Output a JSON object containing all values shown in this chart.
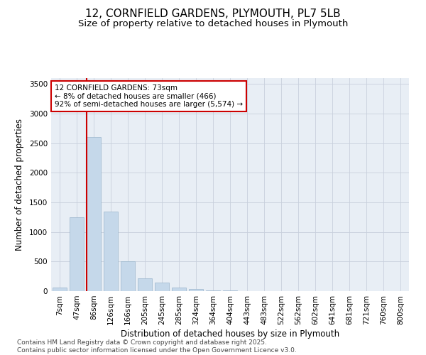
{
  "title_line1": "12, CORNFIELD GARDENS, PLYMOUTH, PL7 5LB",
  "title_line2": "Size of property relative to detached houses in Plymouth",
  "xlabel": "Distribution of detached houses by size in Plymouth",
  "ylabel": "Number of detached properties",
  "categories": [
    "7sqm",
    "47sqm",
    "86sqm",
    "126sqm",
    "166sqm",
    "205sqm",
    "245sqm",
    "285sqm",
    "324sqm",
    "364sqm",
    "404sqm",
    "443sqm",
    "483sqm",
    "522sqm",
    "562sqm",
    "602sqm",
    "641sqm",
    "681sqm",
    "721sqm",
    "760sqm",
    "800sqm"
  ],
  "values": [
    55,
    1245,
    2600,
    1350,
    500,
    220,
    145,
    55,
    40,
    18,
    8,
    4,
    2,
    1,
    1,
    0,
    0,
    0,
    0,
    0,
    0
  ],
  "bar_color": "#c5d8ea",
  "bar_edge_color": "#9ab5cc",
  "grid_color": "#c8d0dc",
  "bg_color": "#e8eef5",
  "vline_color": "#cc0000",
  "vline_pos": 1.57,
  "annotation_text": "12 CORNFIELD GARDENS: 73sqm\n← 8% of detached houses are smaller (466)\n92% of semi-detached houses are larger (5,574) →",
  "annotation_box_facecolor": "#ffffff",
  "annotation_box_edgecolor": "#cc0000",
  "ylim": [
    0,
    3600
  ],
  "yticks": [
    0,
    500,
    1000,
    1500,
    2000,
    2500,
    3000,
    3500
  ],
  "footer_line1": "Contains HM Land Registry data © Crown copyright and database right 2025.",
  "footer_line2": "Contains public sector information licensed under the Open Government Licence v3.0.",
  "title_fontsize": 11,
  "subtitle_fontsize": 9.5,
  "axis_label_fontsize": 8.5,
  "tick_fontsize": 7.5,
  "annotation_fontsize": 7.5,
  "footer_fontsize": 6.5
}
